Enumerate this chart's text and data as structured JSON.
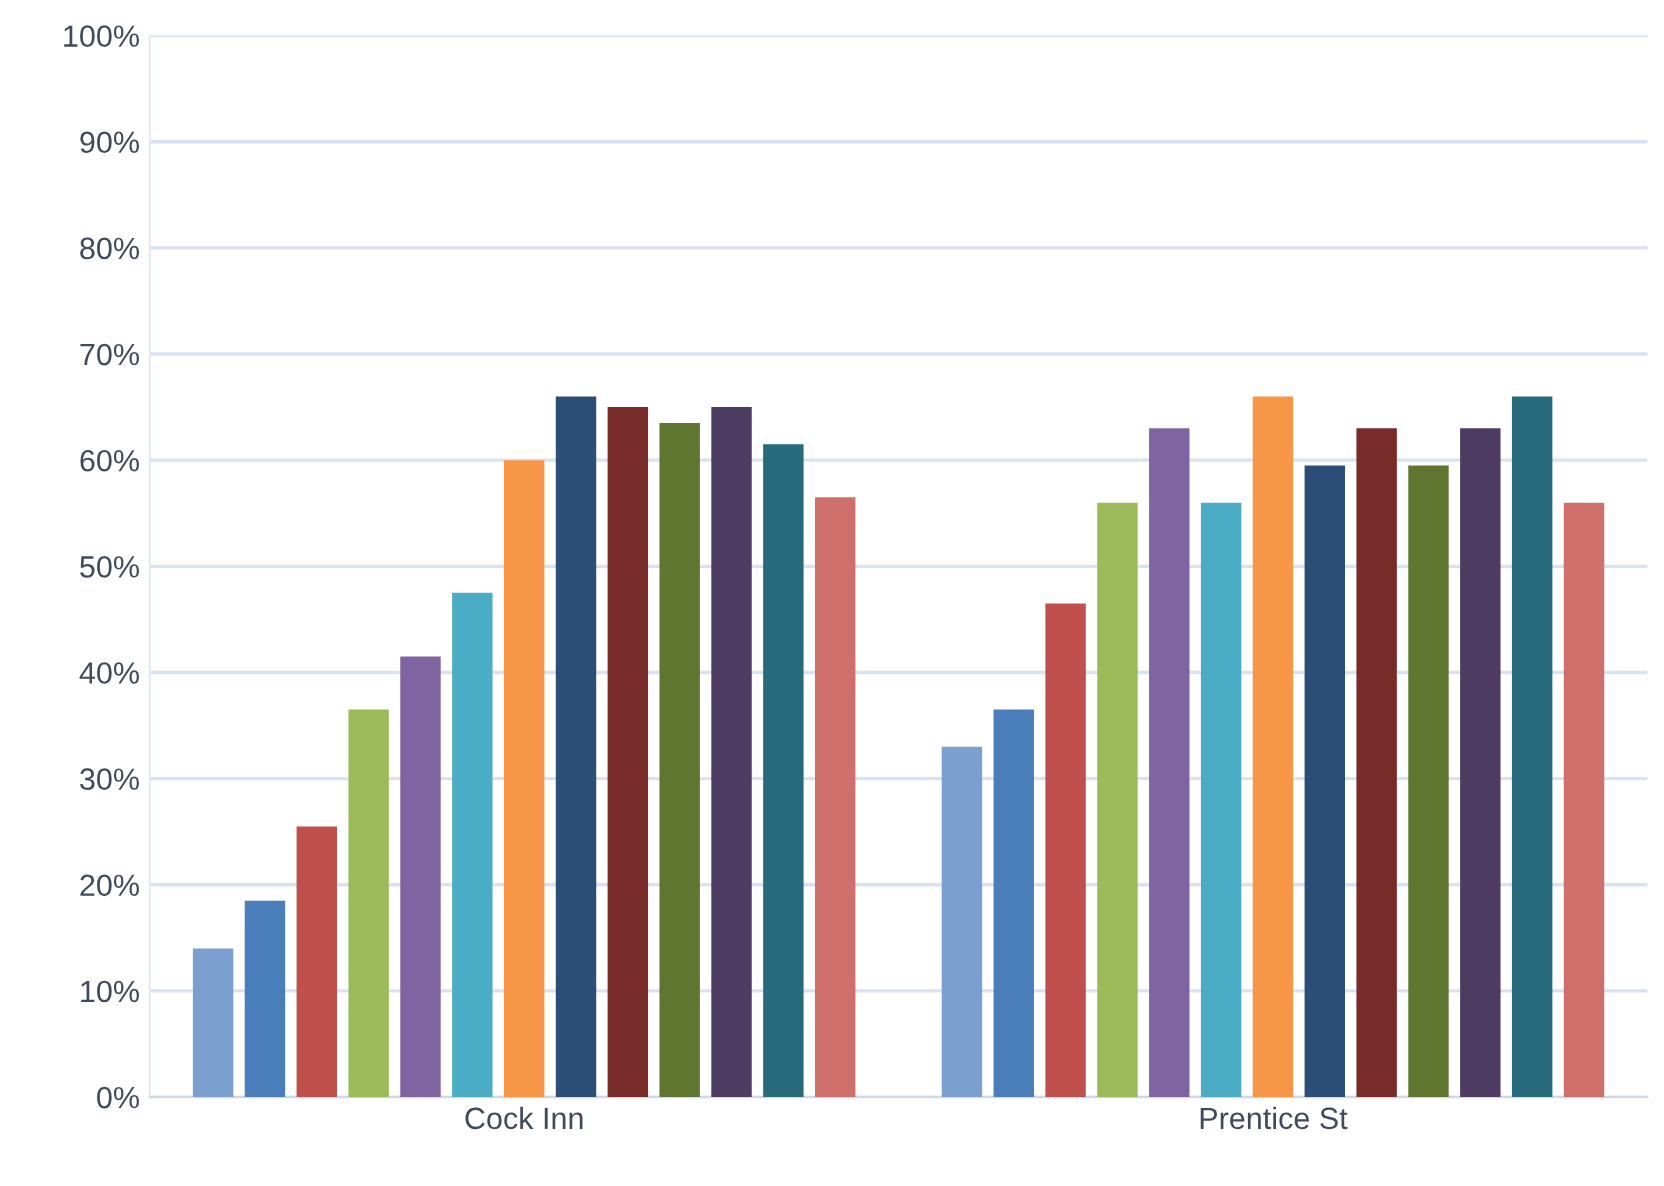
{
  "chart_data": {
    "type": "bar",
    "categories": [
      "Cock Inn",
      "Prentice St"
    ],
    "series": [
      {
        "color": "#7ba0d0",
        "values": [
          14,
          33
        ]
      },
      {
        "color": "#4a7ebb",
        "values": [
          18.5,
          36.5
        ]
      },
      {
        "color": "#c0504d",
        "values": [
          25.5,
          46.5
        ]
      },
      {
        "color": "#9bbb59",
        "values": [
          36.5,
          56
        ]
      },
      {
        "color": "#8064a2",
        "values": [
          41.5,
          63
        ]
      },
      {
        "color": "#4bacc6",
        "values": [
          47.5,
          56
        ]
      },
      {
        "color": "#f79646",
        "values": [
          60,
          66
        ]
      },
      {
        "color": "#2c4d75",
        "values": [
          66,
          59.5
        ]
      },
      {
        "color": "#772c2a",
        "values": [
          65,
          63
        ]
      },
      {
        "color": "#5f7530",
        "values": [
          63.5,
          59.5
        ]
      },
      {
        "color": "#4d3b62",
        "values": [
          65,
          63
        ]
      },
      {
        "color": "#276a7c",
        "values": [
          61.5,
          66
        ]
      },
      {
        "color": "#d0706d",
        "values": [
          56.5,
          56
        ]
      }
    ],
    "ylim": [
      0,
      100
    ],
    "yticks": [
      {
        "value": 0,
        "label": "0%"
      },
      {
        "value": 10,
        "label": "10%"
      },
      {
        "value": 20,
        "label": "20%"
      },
      {
        "value": 30,
        "label": "30%"
      },
      {
        "value": 40,
        "label": "40%"
      },
      {
        "value": 50,
        "label": "50%"
      },
      {
        "value": 60,
        "label": "60%"
      },
      {
        "value": 70,
        "label": "70%"
      },
      {
        "value": 80,
        "label": "80%"
      },
      {
        "value": 90,
        "label": "90%"
      },
      {
        "value": 100,
        "label": "100%"
      }
    ],
    "grid": "y"
  }
}
